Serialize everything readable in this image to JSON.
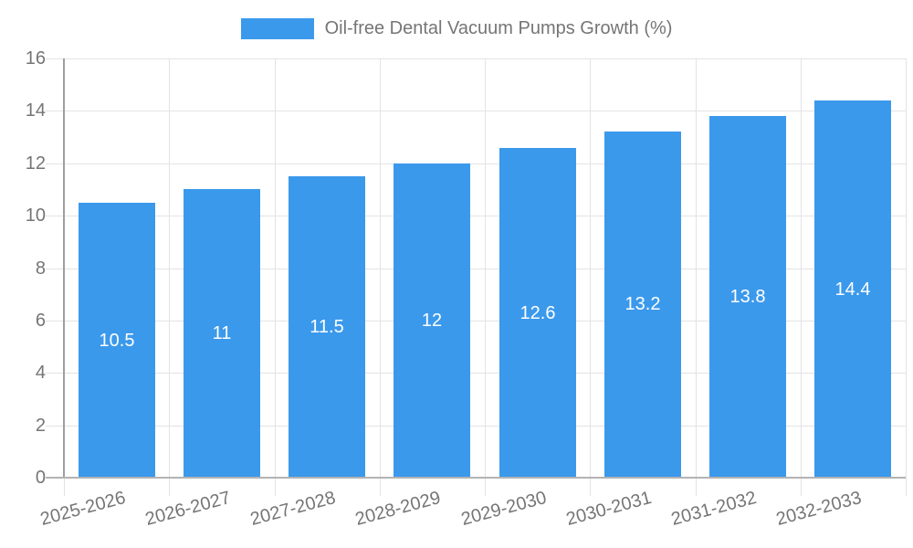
{
  "legend": {
    "label": "Oil-free Dental Vacuum Pumps Growth (%)"
  },
  "chart_data": {
    "type": "bar",
    "title": "Oil-free Dental Vacuum Pumps Growth (%)",
    "categories": [
      "2025-2026",
      "2026-2027",
      "2027-2028",
      "2028-2029",
      "2029-2030",
      "2030-2031",
      "2031-2032",
      "2032-2033"
    ],
    "values": [
      10.5,
      11,
      11.5,
      12,
      12.6,
      13.2,
      13.8,
      14.4
    ],
    "xlabel": "",
    "ylabel": "",
    "ylim": [
      0,
      16
    ],
    "yticks": [
      0,
      2,
      4,
      6,
      8,
      10,
      12,
      14,
      16
    ],
    "grid": true,
    "legend_position": "top-center",
    "bar_labels_inside": true,
    "colors": {
      "bar": "#3b99ec",
      "bar_label": "#ffffff",
      "axis_text": "#757575",
      "gridline": "#e3e3e3",
      "axis_line": "#9e9e9e",
      "baseline": "#b3b3b3",
      "background": "#ffffff"
    }
  }
}
